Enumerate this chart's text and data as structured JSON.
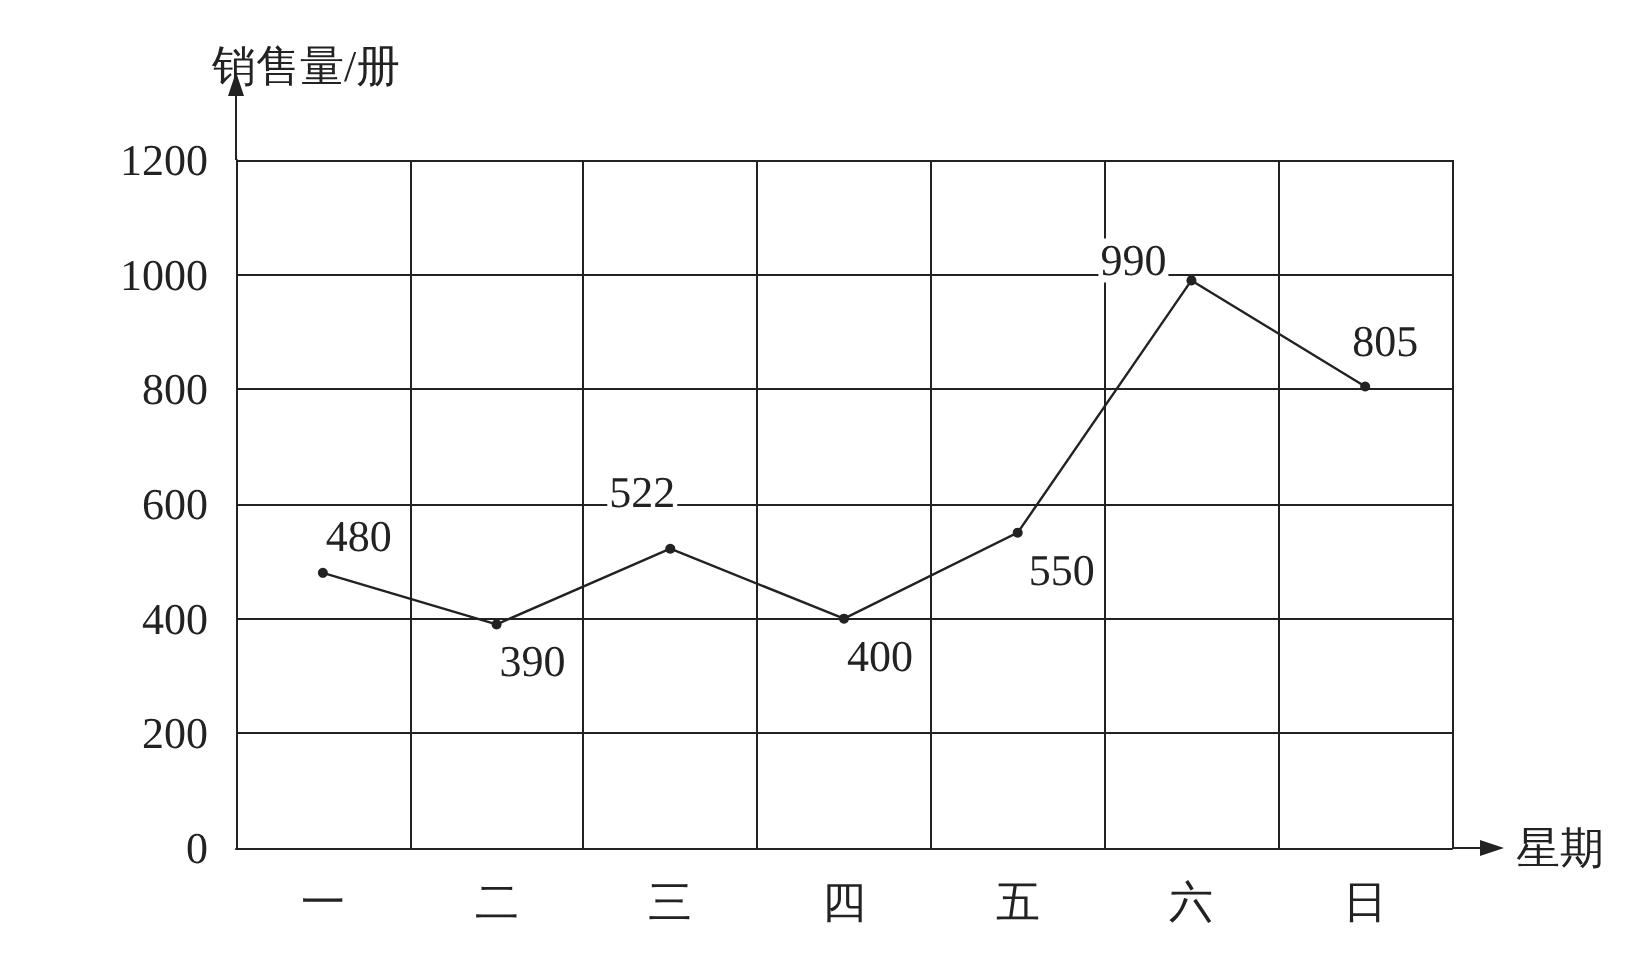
{
  "chart_data": {
    "type": "line",
    "xlabel": "星期",
    "ylabel": "销售量/册",
    "categories": [
      "一",
      "二",
      "三",
      "四",
      "五",
      "六",
      "日"
    ],
    "values": [
      480,
      390,
      522,
      400,
      550,
      990,
      805
    ],
    "color": "#222222",
    "ylim": [
      0,
      1200
    ],
    "yticks": [
      0,
      200,
      400,
      600,
      800,
      1000,
      1200
    ],
    "grid": true,
    "data_labels": true,
    "marker": "circle",
    "line_style": "solid"
  }
}
